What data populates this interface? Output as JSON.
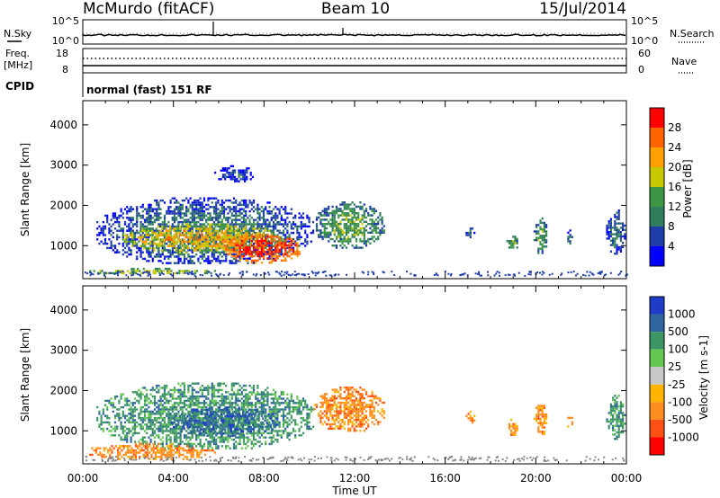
{
  "header": {
    "station": "McMurdo (fitACF)",
    "beam": "Beam 10",
    "date": "15/Jul/2014"
  },
  "top_panels": {
    "nsky_label": "N.Sky",
    "nsearch_label": "N.Search",
    "nsky_ticks": [
      "10^5",
      "10^0"
    ],
    "nsearch_ticks": [
      "10^5",
      "10^0"
    ],
    "freq_label": "Freq.",
    "freq_unit": "[MHz]",
    "freq_ticks": [
      "18",
      "8"
    ],
    "nave_label": "Nave",
    "nave_ticks": [
      "60",
      "0"
    ],
    "cpid_label": "CPID",
    "cpid_text": "normal (fast) 151 RF"
  },
  "chart_data": [
    {
      "type": "heatmap",
      "title": "",
      "xlabel": "Time UT",
      "ylabel": "Slant Range [km]",
      "xlim": [
        "00:00",
        "24:00"
      ],
      "ylim": [
        180,
        4600
      ],
      "xticks": [
        "00:00",
        "04:00",
        "08:00",
        "12:00",
        "16:00",
        "20:00",
        "00:00"
      ],
      "yticks": [
        1000,
        2000,
        3000,
        4000
      ],
      "colorbar": {
        "label": "Power [dB]",
        "ticks": [
          "4",
          "8",
          "12",
          "16",
          "20",
          "24",
          "28"
        ],
        "colors": [
          "#0000ff",
          "#1e3caa",
          "#2f7d5a",
          "#3c9646",
          "#c8c800",
          "#ffa000",
          "#ff6400",
          "#ff0000"
        ],
        "range": [
          0,
          32
        ]
      },
      "echo_regions": [
        {
          "t_start": 0.6,
          "t_end": 10.2,
          "r_start": 550,
          "r_end": 2200,
          "level": 2
        },
        {
          "t_start": 1.8,
          "t_end": 8.8,
          "r_start": 850,
          "r_end": 1550,
          "level": 5
        },
        {
          "t_start": 6.2,
          "t_end": 9.6,
          "r_start": 600,
          "r_end": 1300,
          "level": 7
        },
        {
          "t_start": 0.2,
          "t_end": 5.8,
          "r_start": 300,
          "r_end": 450,
          "level": 4
        },
        {
          "t_start": 10.2,
          "t_end": 13.3,
          "r_start": 950,
          "r_end": 2100,
          "level": 3
        },
        {
          "t_start": 16.9,
          "t_end": 17.3,
          "r_start": 1200,
          "r_end": 1450,
          "level": 2
        },
        {
          "t_start": 18.7,
          "t_end": 19.2,
          "r_start": 900,
          "r_end": 1300,
          "level": 3
        },
        {
          "t_start": 19.9,
          "t_end": 20.5,
          "r_start": 800,
          "r_end": 1700,
          "level": 3
        },
        {
          "t_start": 21.3,
          "t_end": 21.6,
          "r_start": 1050,
          "r_end": 1400,
          "level": 2
        },
        {
          "t_start": 23.1,
          "t_end": 23.9,
          "r_start": 800,
          "r_end": 1900,
          "level": 2
        },
        {
          "t_start": 5.8,
          "t_end": 7.5,
          "r_start": 2600,
          "r_end": 3000,
          "level": 1
        }
      ]
    },
    {
      "type": "heatmap",
      "title": "",
      "xlabel": "Time UT",
      "ylabel": "Slant Range [km]",
      "xlim": [
        "00:00",
        "24:00"
      ],
      "ylim": [
        180,
        4600
      ],
      "xticks": [
        "00:00",
        "04:00",
        "08:00",
        "12:00",
        "16:00",
        "20:00",
        "00:00"
      ],
      "yticks": [
        1000,
        2000,
        3000,
        4000
      ],
      "colorbar": {
        "label": "Velocity [m s-1]",
        "ticks": [
          "1000",
          "500",
          "100",
          "25",
          "-25",
          "-100",
          "-500",
          "-1000"
        ],
        "colors": [
          "#1e3cc8",
          "#2e64a0",
          "#3c9664",
          "#64c850",
          "#c8c8c8",
          "#ffb400",
          "#ff8c1e",
          "#ff5014",
          "#ff0000"
        ]
      },
      "echo_regions": [
        {
          "t_start": 0.6,
          "t_end": 10.2,
          "r_start": 550,
          "r_end": 2200,
          "class": 2
        },
        {
          "t_start": 3.8,
          "t_end": 8.6,
          "r_start": 900,
          "r_end": 1600,
          "class": 1
        },
        {
          "t_start": 0.2,
          "t_end": 5.8,
          "r_start": 300,
          "r_end": 700,
          "class": 6
        },
        {
          "t_start": 10.2,
          "t_end": 13.3,
          "r_start": 1000,
          "r_end": 2100,
          "class": 6
        },
        {
          "t_start": 16.9,
          "t_end": 17.3,
          "r_start": 1200,
          "r_end": 1500,
          "class": 6
        },
        {
          "t_start": 18.7,
          "t_end": 19.2,
          "r_start": 900,
          "r_end": 1300,
          "class": 6
        },
        {
          "t_start": 19.9,
          "t_end": 20.5,
          "r_start": 900,
          "r_end": 1700,
          "class": 6
        },
        {
          "t_start": 21.3,
          "t_end": 21.6,
          "r_start": 1100,
          "r_end": 1400,
          "class": 6
        },
        {
          "t_start": 23.1,
          "t_end": 23.9,
          "r_start": 800,
          "r_end": 1900,
          "class": 2
        }
      ]
    }
  ]
}
